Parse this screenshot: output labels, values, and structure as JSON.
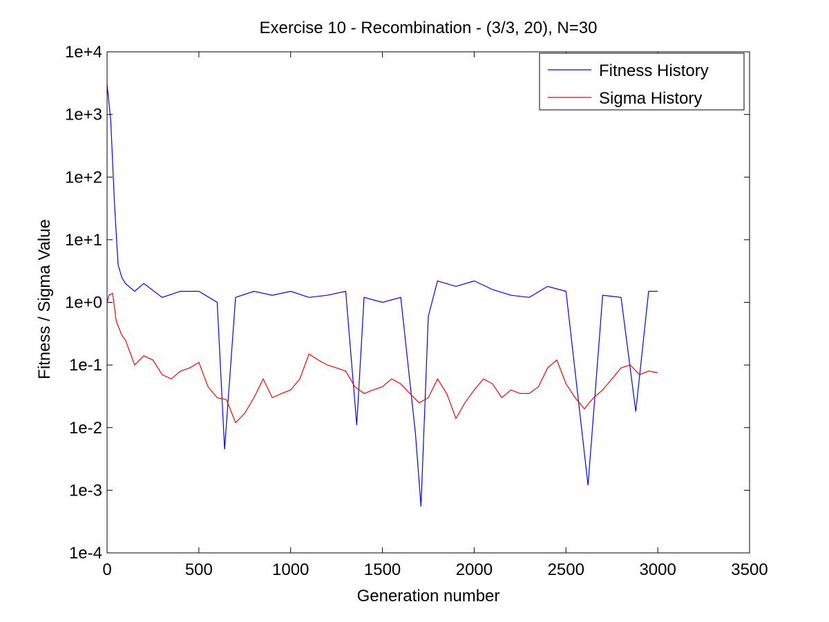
{
  "chart_data": {
    "type": "line",
    "title": "Exercise 10 - Recombination - (3/3, 20), N=30",
    "xlabel": "Generation number",
    "ylabel": "Fitness / Sigma Value",
    "xlim": [
      0,
      3500
    ],
    "ylim": [
      0.0001,
      10000
    ],
    "yscale": "log",
    "x_ticks": [
      0,
      500,
      1000,
      1500,
      2000,
      2500,
      3000,
      3500
    ],
    "x_tick_labels": [
      "0",
      "500",
      "1000",
      "1500",
      "2000",
      "2500",
      "3000",
      "3500"
    ],
    "y_ticks": [
      0.0001,
      0.001,
      0.01,
      0.1,
      1,
      10,
      100,
      1000,
      10000
    ],
    "y_tick_labels": [
      "1e-4",
      "1e-3",
      "1e-2",
      "1e-1",
      "1e+0",
      "1e+1",
      "1e+2",
      "1e+3",
      "1e+4"
    ],
    "grid": false,
    "legend_position": "top-right",
    "series": [
      {
        "name": "Fitness History",
        "color": "#0000ff",
        "x": [
          0,
          20,
          40,
          60,
          80,
          100,
          150,
          200,
          300,
          400,
          500,
          600,
          640,
          700,
          800,
          900,
          1000,
          1100,
          1200,
          1300,
          1360,
          1400,
          1500,
          1600,
          1680,
          1710,
          1750,
          1800,
          1900,
          2000,
          2100,
          2200,
          2300,
          2400,
          2500,
          2620,
          2700,
          2800,
          2880,
          2950,
          3000
        ],
        "values": [
          3000,
          800,
          40,
          4,
          2.5,
          2,
          1.5,
          2,
          1.2,
          1.5,
          1.5,
          1,
          0.0045,
          1.2,
          1.5,
          1.3,
          1.5,
          1.2,
          1.3,
          1.5,
          0.011,
          1.2,
          1,
          1.2,
          0.008,
          0.00055,
          0.6,
          2.2,
          1.8,
          2.2,
          1.6,
          1.3,
          1.2,
          1.8,
          1.5,
          0.0012,
          1.3,
          1.2,
          0.018,
          1.5,
          1.5
        ]
      },
      {
        "name": "Sigma History",
        "color": "#ff0000",
        "x": [
          0,
          10,
          30,
          50,
          80,
          100,
          150,
          200,
          250,
          300,
          350,
          400,
          450,
          500,
          550,
          600,
          650,
          700,
          750,
          800,
          850,
          900,
          950,
          1000,
          1050,
          1100,
          1150,
          1200,
          1250,
          1300,
          1350,
          1400,
          1450,
          1500,
          1550,
          1600,
          1650,
          1700,
          1750,
          1800,
          1850,
          1900,
          1950,
          2000,
          2050,
          2100,
          2150,
          2200,
          2250,
          2300,
          2350,
          2400,
          2450,
          2500,
          2550,
          2600,
          2650,
          2700,
          2750,
          2800,
          2850,
          2900,
          2950,
          3000
        ],
        "values": [
          1.0,
          1.3,
          1.4,
          0.5,
          0.3,
          0.25,
          0.1,
          0.14,
          0.12,
          0.07,
          0.06,
          0.08,
          0.09,
          0.11,
          0.045,
          0.03,
          0.028,
          0.012,
          0.017,
          0.03,
          0.06,
          0.03,
          0.035,
          0.04,
          0.06,
          0.15,
          0.12,
          0.1,
          0.09,
          0.08,
          0.045,
          0.035,
          0.04,
          0.045,
          0.06,
          0.05,
          0.035,
          0.025,
          0.03,
          0.06,
          0.035,
          0.014,
          0.025,
          0.04,
          0.06,
          0.05,
          0.03,
          0.04,
          0.035,
          0.035,
          0.045,
          0.09,
          0.12,
          0.05,
          0.03,
          0.02,
          0.03,
          0.04,
          0.06,
          0.09,
          0.1,
          0.07,
          0.08,
          0.075
        ]
      }
    ]
  }
}
